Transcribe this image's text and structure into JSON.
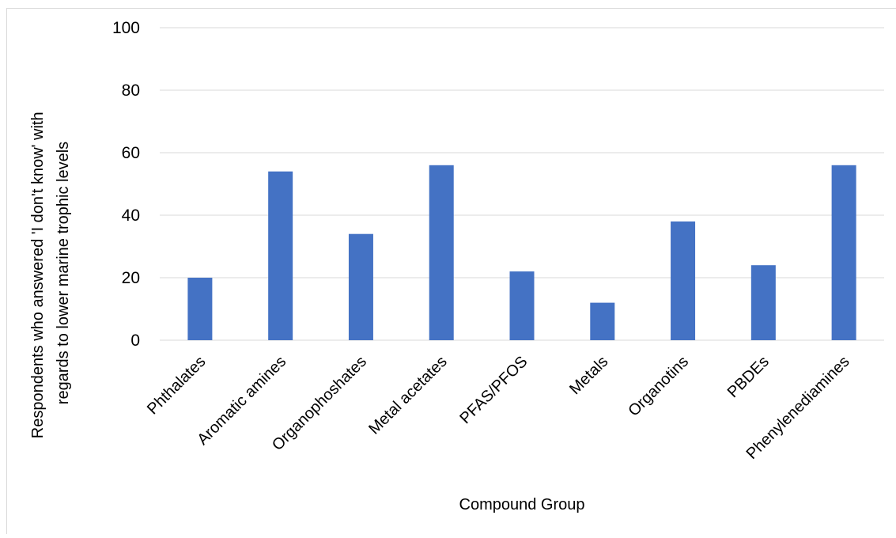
{
  "chart_data": {
    "type": "bar",
    "title": "",
    "xlabel": "Compound Group",
    "ylabel_lines": [
      "Respondents who answered 'I don't know' with",
      "regards to lower marine trophic levels"
    ],
    "categories": [
      "Phthalates",
      "Aromatic amines",
      "Organophoshates",
      "Metal acetates",
      "PFAS/PFOS",
      "Metals",
      "Organotins",
      "PBDEs",
      "Phenylenediamines"
    ],
    "series": [
      {
        "values": [
          20,
          54,
          34,
          56,
          22,
          12,
          38,
          24,
          56
        ],
        "color": "#4472c4"
      }
    ],
    "ylim": [
      0,
      100
    ],
    "yticks": [
      0,
      20,
      40,
      60,
      80,
      100
    ],
    "grid": true,
    "gridColor": "#d9d9d9",
    "legend": "none"
  }
}
